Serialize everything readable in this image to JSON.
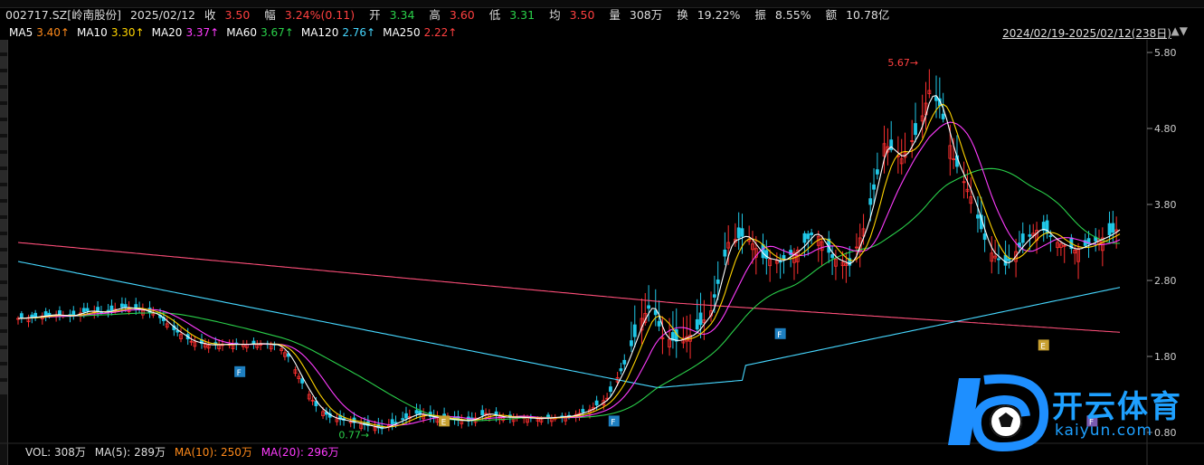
{
  "quote": {
    "code": "002717.SZ[岭南股份]",
    "date": "2025/02/12",
    "close_label": "收",
    "close": "3.50",
    "change_label": "幅",
    "change": "3.24%(0.11)",
    "open_label": "开",
    "open": "3.34",
    "high_label": "高",
    "high": "3.60",
    "low_label": "低",
    "low": "3.31",
    "avg_label": "均",
    "avg": "3.50",
    "vol_label": "量",
    "vol": "308万",
    "turnover_label": "换",
    "turnover": "19.22%",
    "amp_label": "振",
    "amp": "8.55%",
    "amount_label": "额",
    "amount": "10.78亿"
  },
  "ma_legend": [
    {
      "label": "MA5",
      "value": "3.40↑",
      "color": "#ffffff",
      "vcolor": "#ff8a1a"
    },
    {
      "label": "MA10",
      "value": "3.30↑",
      "color": "#ffffff",
      "vcolor": "#ffd400"
    },
    {
      "label": "MA20",
      "value": "3.37↑",
      "color": "#ffffff",
      "vcolor": "#ff3cff"
    },
    {
      "label": "MA60",
      "value": "3.67↑",
      "color": "#ffffff",
      "vcolor": "#2ad04a"
    },
    {
      "label": "MA120",
      "value": "2.76↑",
      "color": "#ffffff",
      "vcolor": "#46d7ff"
    },
    {
      "label": "MA250",
      "value": "2.22↑",
      "color": "#ffffff",
      "vcolor": "#ff4040"
    }
  ],
  "range": "2024/02/19-2025/02/12(238日)",
  "volume": {
    "label": "VOL: 308万",
    "ma5": "MA(5): 289万",
    "ma10": "MA(10): 250万",
    "ma20": "MA(20): 296万"
  },
  "watermark": {
    "text": "开云体育",
    "sub": "kaiyun.com"
  },
  "chart_data": {
    "type": "candlestick",
    "title": "",
    "yaxis_ticks": [
      5.8,
      4.8,
      3.8,
      2.8,
      1.8,
      0.8
    ],
    "ylim": [
      0.8,
      5.8
    ],
    "annotations": [
      {
        "text": "5.67",
        "type": "high-marker"
      },
      {
        "text": "0.77",
        "type": "low-marker"
      }
    ],
    "event_markers": [
      "F",
      "E",
      "F",
      "F",
      "E",
      "F"
    ],
    "series_lines": [
      {
        "name": "MA5",
        "color": "#ffffff"
      },
      {
        "name": "MA10",
        "color": "#ffd400"
      },
      {
        "name": "MA20",
        "color": "#ff3cff"
      },
      {
        "name": "MA60",
        "color": "#2ad04a"
      },
      {
        "name": "MA120",
        "color": "#46d7ff"
      },
      {
        "name": "MA250",
        "color": "#ff4f7a"
      }
    ],
    "close_path": [
      [
        0,
        2.3
      ],
      [
        5,
        2.32
      ],
      [
        10,
        2.35
      ],
      [
        15,
        2.33
      ],
      [
        20,
        2.4
      ],
      [
        25,
        2.38
      ],
      [
        30,
        2.45
      ],
      [
        35,
        2.42
      ],
      [
        40,
        2.35
      ],
      [
        45,
        2.15
      ],
      [
        50,
        2.0
      ],
      [
        55,
        1.95
      ],
      [
        60,
        1.96
      ],
      [
        65,
        1.96
      ],
      [
        70,
        1.97
      ],
      [
        75,
        1.95
      ],
      [
        78,
        1.8
      ],
      [
        82,
        1.45
      ],
      [
        86,
        1.15
      ],
      [
        90,
        1.0
      ],
      [
        95,
        0.95
      ],
      [
        100,
        0.9
      ],
      [
        105,
        0.85
      ],
      [
        110,
        0.95
      ],
      [
        115,
        1.05
      ],
      [
        120,
        1.0
      ],
      [
        125,
        0.97
      ],
      [
        130,
        0.95
      ],
      [
        135,
        1.05
      ],
      [
        140,
        1.0
      ],
      [
        145,
        1.0
      ],
      [
        150,
        0.98
      ],
      [
        155,
        1.0
      ],
      [
        160,
        1.02
      ],
      [
        165,
        1.1
      ],
      [
        170,
        1.25
      ],
      [
        175,
        1.7
      ],
      [
        180,
        2.3
      ],
      [
        183,
        2.5
      ],
      [
        186,
        2.05
      ],
      [
        190,
        2.0
      ],
      [
        195,
        2.1
      ],
      [
        200,
        2.4
      ],
      [
        205,
        3.3
      ],
      [
        210,
        3.4
      ],
      [
        215,
        3.1
      ],
      [
        220,
        3.05
      ],
      [
        225,
        3.2
      ],
      [
        230,
        3.45
      ],
      [
        235,
        3.1
      ],
      [
        240,
        3.0
      ],
      [
        245,
        3.6
      ],
      [
        250,
        4.6
      ],
      [
        255,
        4.4
      ],
      [
        260,
        4.8
      ],
      [
        263,
        5.3
      ],
      [
        266,
        5.1
      ],
      [
        270,
        4.4
      ],
      [
        275,
        3.9
      ],
      [
        280,
        3.2
      ],
      [
        285,
        3.0
      ],
      [
        290,
        3.3
      ],
      [
        295,
        3.5
      ],
      [
        300,
        3.3
      ],
      [
        305,
        3.2
      ],
      [
        310,
        3.3
      ],
      [
        315,
        3.4
      ],
      [
        318,
        3.5
      ]
    ]
  }
}
